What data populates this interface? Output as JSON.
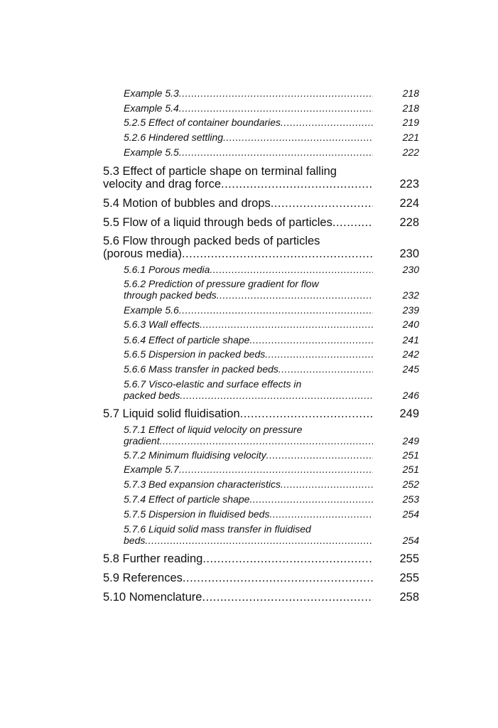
{
  "toc": {
    "entries": [
      {
        "level": "sub",
        "lines": [
          "Example 5.3"
        ],
        "page": "218"
      },
      {
        "level": "sub",
        "lines": [
          "Example 5.4"
        ],
        "page": "218"
      },
      {
        "level": "sub",
        "lines": [
          "5.2.5 Effect of container boundaries"
        ],
        "page": "219"
      },
      {
        "level": "sub",
        "lines": [
          "5.2.6 Hindered settling"
        ],
        "page": "221"
      },
      {
        "level": "sub",
        "lines": [
          "Example 5.5"
        ],
        "page": "222"
      },
      {
        "level": "main",
        "lines": [
          "5.3 Effect of particle shape on terminal falling",
          "velocity and drag force"
        ],
        "page": "223"
      },
      {
        "level": "main",
        "lines": [
          "5.4 Motion of bubbles and drops"
        ],
        "page": "224"
      },
      {
        "level": "main",
        "lines": [
          "5.5 Flow of a liquid through beds of particles"
        ],
        "page": "228"
      },
      {
        "level": "main",
        "lines": [
          "5.6 Flow through packed beds of particles",
          "(porous media)"
        ],
        "page": "230"
      },
      {
        "level": "sub",
        "lines": [
          "5.6.1 Porous media"
        ],
        "page": "230"
      },
      {
        "level": "sub",
        "lines": [
          "5.6.2 Prediction of pressure gradient for flow",
          "through packed beds"
        ],
        "page": "232"
      },
      {
        "level": "sub",
        "lines": [
          "Example 5.6"
        ],
        "page": "239"
      },
      {
        "level": "sub",
        "lines": [
          "5.6.3 Wall effects"
        ],
        "page": "240"
      },
      {
        "level": "sub",
        "lines": [
          "5.6.4 Effect of particle shape"
        ],
        "page": "241"
      },
      {
        "level": "sub",
        "lines": [
          "5.6.5 Dispersion in packed beds"
        ],
        "page": "242"
      },
      {
        "level": "sub",
        "lines": [
          "5.6.6 Mass transfer in packed beds"
        ],
        "page": "245"
      },
      {
        "level": "sub",
        "lines": [
          "5.6.7 Visco-elastic and surface effects in",
          "packed beds"
        ],
        "page": "246"
      },
      {
        "level": "main",
        "lines": [
          "5.7 Liquid solid fluidisation"
        ],
        "page": "249"
      },
      {
        "level": "sub",
        "lines": [
          "5.7.1 Effect of liquid velocity on pressure",
          "gradient"
        ],
        "page": "249"
      },
      {
        "level": "sub",
        "lines": [
          "5.7.2 Minimum fluidising velocity"
        ],
        "page": "251"
      },
      {
        "level": "sub",
        "lines": [
          "Example 5.7"
        ],
        "page": "251"
      },
      {
        "level": "sub",
        "lines": [
          "5.7.3 Bed expansion characteristics"
        ],
        "page": "252"
      },
      {
        "level": "sub",
        "lines": [
          "5.7.4 Effect of particle shape"
        ],
        "page": "253"
      },
      {
        "level": "sub",
        "lines": [
          "5.7.5 Dispersion in fluidised beds"
        ],
        "page": "254"
      },
      {
        "level": "sub",
        "lines": [
          "5.7.6 Liquid solid mass transfer in fluidised",
          "beds"
        ],
        "page": "254"
      },
      {
        "level": "main",
        "lines": [
          "5.8 Further reading"
        ],
        "page": "255"
      },
      {
        "level": "main",
        "lines": [
          "5.9 References"
        ],
        "page": "255"
      },
      {
        "level": "main",
        "lines": [
          "5.10 Nomenclature"
        ],
        "page": "258"
      }
    ]
  }
}
